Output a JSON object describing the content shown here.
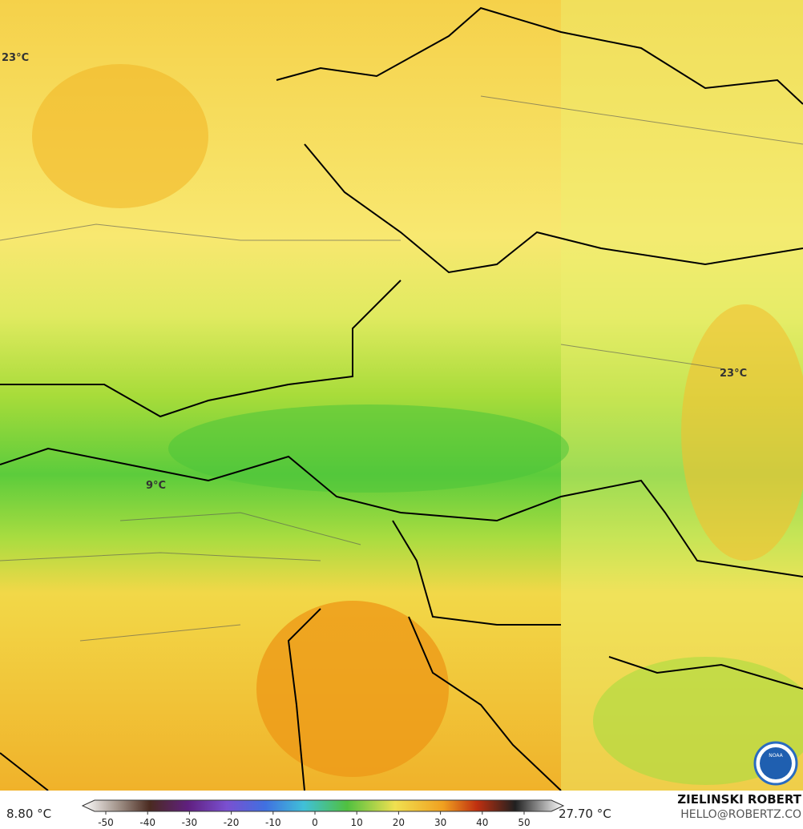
{
  "map": {
    "labels": [
      {
        "text": "23°C"
      },
      {
        "text": "23°C"
      },
      {
        "text": "9°C"
      }
    ]
  },
  "colorbar": {
    "min_label": "8.80 °C",
    "max_label": "27.70 °C",
    "ticks": [
      -50,
      -40,
      -30,
      -20,
      -10,
      0,
      10,
      20,
      30,
      40,
      50
    ]
  },
  "credit": {
    "name": "ZIELINSKI ROBERT",
    "email": "HELLO@ROBERTZ.CO"
  }
}
